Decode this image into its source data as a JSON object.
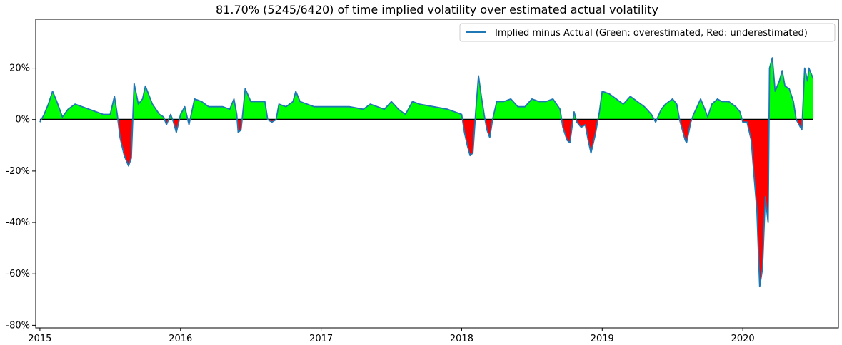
{
  "chart_data": {
    "type": "area",
    "title": "81.70% (5245/6420) of time implied volatility over estimated actual volatility",
    "xlabel": "",
    "ylabel": "",
    "xlim": [
      2014.97,
      2020.68
    ],
    "ylim": [
      -81,
      39
    ],
    "y_ticks": [
      20,
      0,
      -20,
      -40,
      -60,
      -80
    ],
    "y_tick_labels": [
      "20%",
      "0%",
      "-20%",
      "-40%",
      "-60%",
      "-80%"
    ],
    "x_ticks": [
      2015,
      2016,
      2017,
      2018,
      2019,
      2020
    ],
    "x_tick_labels": [
      "2015",
      "2016",
      "2017",
      "2018",
      "2019",
      "2020"
    ],
    "legend": {
      "position": "top-right",
      "label": "Implied minus Actual (Green: overestimated, Red: underestimated)"
    },
    "colors": {
      "line": "#1f77b4",
      "positive_fill": "#00ff00",
      "negative_fill": "#ff0000",
      "zero_line": "#000000"
    },
    "series": [
      {
        "name": "Implied minus Actual (Green: overestimated, Red: underestimated)",
        "points": [
          [
            2015.0,
            -1
          ],
          [
            2015.03,
            2
          ],
          [
            2015.06,
            6
          ],
          [
            2015.09,
            11
          ],
          [
            2015.12,
            7
          ],
          [
            2015.16,
            1
          ],
          [
            2015.2,
            4
          ],
          [
            2015.25,
            6
          ],
          [
            2015.3,
            5
          ],
          [
            2015.35,
            4
          ],
          [
            2015.4,
            3
          ],
          [
            2015.45,
            2
          ],
          [
            2015.5,
            2
          ],
          [
            2015.53,
            9
          ],
          [
            2015.55,
            2
          ],
          [
            2015.57,
            -7
          ],
          [
            2015.6,
            -14
          ],
          [
            2015.63,
            -18
          ],
          [
            2015.65,
            -15
          ],
          [
            2015.67,
            14
          ],
          [
            2015.7,
            6
          ],
          [
            2015.73,
            8
          ],
          [
            2015.75,
            13
          ],
          [
            2015.8,
            6
          ],
          [
            2015.85,
            2
          ],
          [
            2015.88,
            1
          ],
          [
            2015.9,
            -2
          ],
          [
            2015.93,
            2
          ],
          [
            2015.95,
            -1
          ],
          [
            2015.97,
            -5
          ],
          [
            2016.0,
            2
          ],
          [
            2016.03,
            5
          ],
          [
            2016.06,
            -2
          ],
          [
            2016.1,
            8
          ],
          [
            2016.15,
            7
          ],
          [
            2016.2,
            5
          ],
          [
            2016.3,
            5
          ],
          [
            2016.35,
            4
          ],
          [
            2016.38,
            8
          ],
          [
            2016.4,
            2
          ],
          [
            2016.41,
            -5
          ],
          [
            2016.43,
            -4
          ],
          [
            2016.44,
            1
          ],
          [
            2016.46,
            12
          ],
          [
            2016.5,
            7
          ],
          [
            2016.55,
            7
          ],
          [
            2016.6,
            7
          ],
          [
            2016.62,
            0
          ],
          [
            2016.65,
            -1
          ],
          [
            2016.68,
            0
          ],
          [
            2016.7,
            6
          ],
          [
            2016.75,
            5
          ],
          [
            2016.8,
            7
          ],
          [
            2016.82,
            11
          ],
          [
            2016.85,
            7
          ],
          [
            2016.95,
            5
          ],
          [
            2017.1,
            5
          ],
          [
            2017.2,
            5
          ],
          [
            2017.3,
            4
          ],
          [
            2017.35,
            6
          ],
          [
            2017.4,
            5
          ],
          [
            2017.45,
            4
          ],
          [
            2017.5,
            7
          ],
          [
            2017.55,
            4
          ],
          [
            2017.6,
            2
          ],
          [
            2017.65,
            7
          ],
          [
            2017.7,
            6
          ],
          [
            2017.8,
            5
          ],
          [
            2017.9,
            4
          ],
          [
            2017.95,
            3
          ],
          [
            2018.0,
            2
          ],
          [
            2018.02,
            -5
          ],
          [
            2018.04,
            -10
          ],
          [
            2018.06,
            -14
          ],
          [
            2018.08,
            -13
          ],
          [
            2018.1,
            3
          ],
          [
            2018.12,
            17
          ],
          [
            2018.14,
            9
          ],
          [
            2018.16,
            2
          ],
          [
            2018.18,
            -4
          ],
          [
            2018.2,
            -7
          ],
          [
            2018.22,
            0
          ],
          [
            2018.25,
            7
          ],
          [
            2018.3,
            7
          ],
          [
            2018.35,
            8
          ],
          [
            2018.4,
            5
          ],
          [
            2018.45,
            5
          ],
          [
            2018.5,
            8
          ],
          [
            2018.55,
            7
          ],
          [
            2018.6,
            7
          ],
          [
            2018.65,
            8
          ],
          [
            2018.7,
            4
          ],
          [
            2018.72,
            -3
          ],
          [
            2018.75,
            -8
          ],
          [
            2018.77,
            -9
          ],
          [
            2018.8,
            3
          ],
          [
            2018.82,
            -1
          ],
          [
            2018.85,
            -3
          ],
          [
            2018.88,
            -2
          ],
          [
            2018.9,
            -8
          ],
          [
            2018.92,
            -13
          ],
          [
            2018.95,
            -6
          ],
          [
            2018.98,
            3
          ],
          [
            2019.0,
            11
          ],
          [
            2019.05,
            10
          ],
          [
            2019.1,
            8
          ],
          [
            2019.15,
            6
          ],
          [
            2019.2,
            9
          ],
          [
            2019.25,
            7
          ],
          [
            2019.3,
            5
          ],
          [
            2019.35,
            2
          ],
          [
            2019.38,
            -1
          ],
          [
            2019.42,
            4
          ],
          [
            2019.45,
            6
          ],
          [
            2019.5,
            8
          ],
          [
            2019.53,
            6
          ],
          [
            2019.55,
            0
          ],
          [
            2019.57,
            -4
          ],
          [
            2019.59,
            -8
          ],
          [
            2019.6,
            -9
          ],
          [
            2019.63,
            -1
          ],
          [
            2019.65,
            2
          ],
          [
            2019.7,
            8
          ],
          [
            2019.73,
            4
          ],
          [
            2019.75,
            1
          ],
          [
            2019.78,
            6
          ],
          [
            2019.82,
            8
          ],
          [
            2019.85,
            7
          ],
          [
            2019.9,
            7
          ],
          [
            2019.95,
            5
          ],
          [
            2019.98,
            3
          ],
          [
            2020.0,
            -1
          ],
          [
            2020.03,
            -1
          ],
          [
            2020.06,
            -8
          ],
          [
            2020.08,
            -22
          ],
          [
            2020.1,
            -35
          ],
          [
            2020.12,
            -65
          ],
          [
            2020.14,
            -58
          ],
          [
            2020.16,
            -30
          ],
          [
            2020.18,
            -40
          ],
          [
            2020.19,
            20
          ],
          [
            2020.21,
            24
          ],
          [
            2020.23,
            11
          ],
          [
            2020.26,
            15
          ],
          [
            2020.28,
            19
          ],
          [
            2020.3,
            13
          ],
          [
            2020.33,
            12
          ],
          [
            2020.36,
            7
          ],
          [
            2020.38,
            0
          ],
          [
            2020.4,
            -2
          ],
          [
            2020.42,
            -4
          ],
          [
            2020.44,
            20
          ],
          [
            2020.46,
            15
          ],
          [
            2020.47,
            20
          ],
          [
            2020.5,
            16
          ]
        ]
      }
    ]
  }
}
